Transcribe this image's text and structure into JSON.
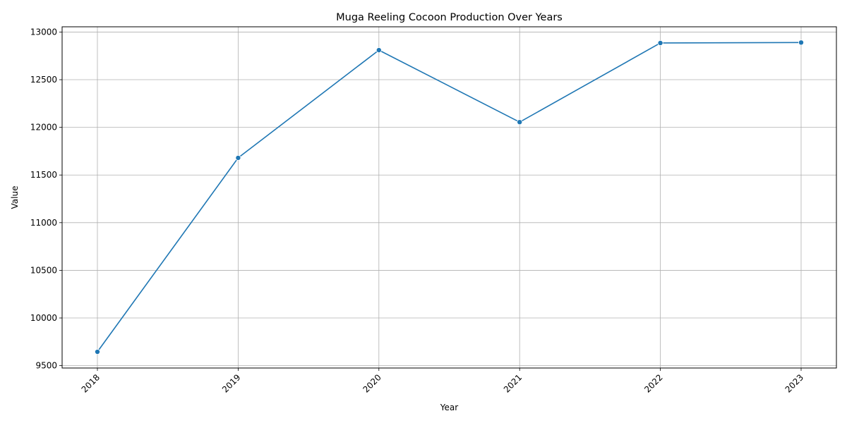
{
  "chart_data": {
    "type": "line",
    "title": "Muga Reeling Cocoon Production Over Years",
    "xlabel": "Year",
    "ylabel": "Value",
    "categories": [
      "2018",
      "2019",
      "2020",
      "2021",
      "2022",
      "2023"
    ],
    "series": [
      {
        "values": [
          9645,
          11680,
          12810,
          12055,
          12885,
          12890
        ]
      }
    ],
    "ylim": [
      9475,
      13055
    ],
    "yticks": [
      "9500",
      "10000",
      "10500",
      "11000",
      "11500",
      "12000",
      "12500",
      "13000"
    ],
    "grid": true,
    "line_color": "#1f77b4",
    "grid_color": "#b0b0b0",
    "marker": "circle"
  }
}
